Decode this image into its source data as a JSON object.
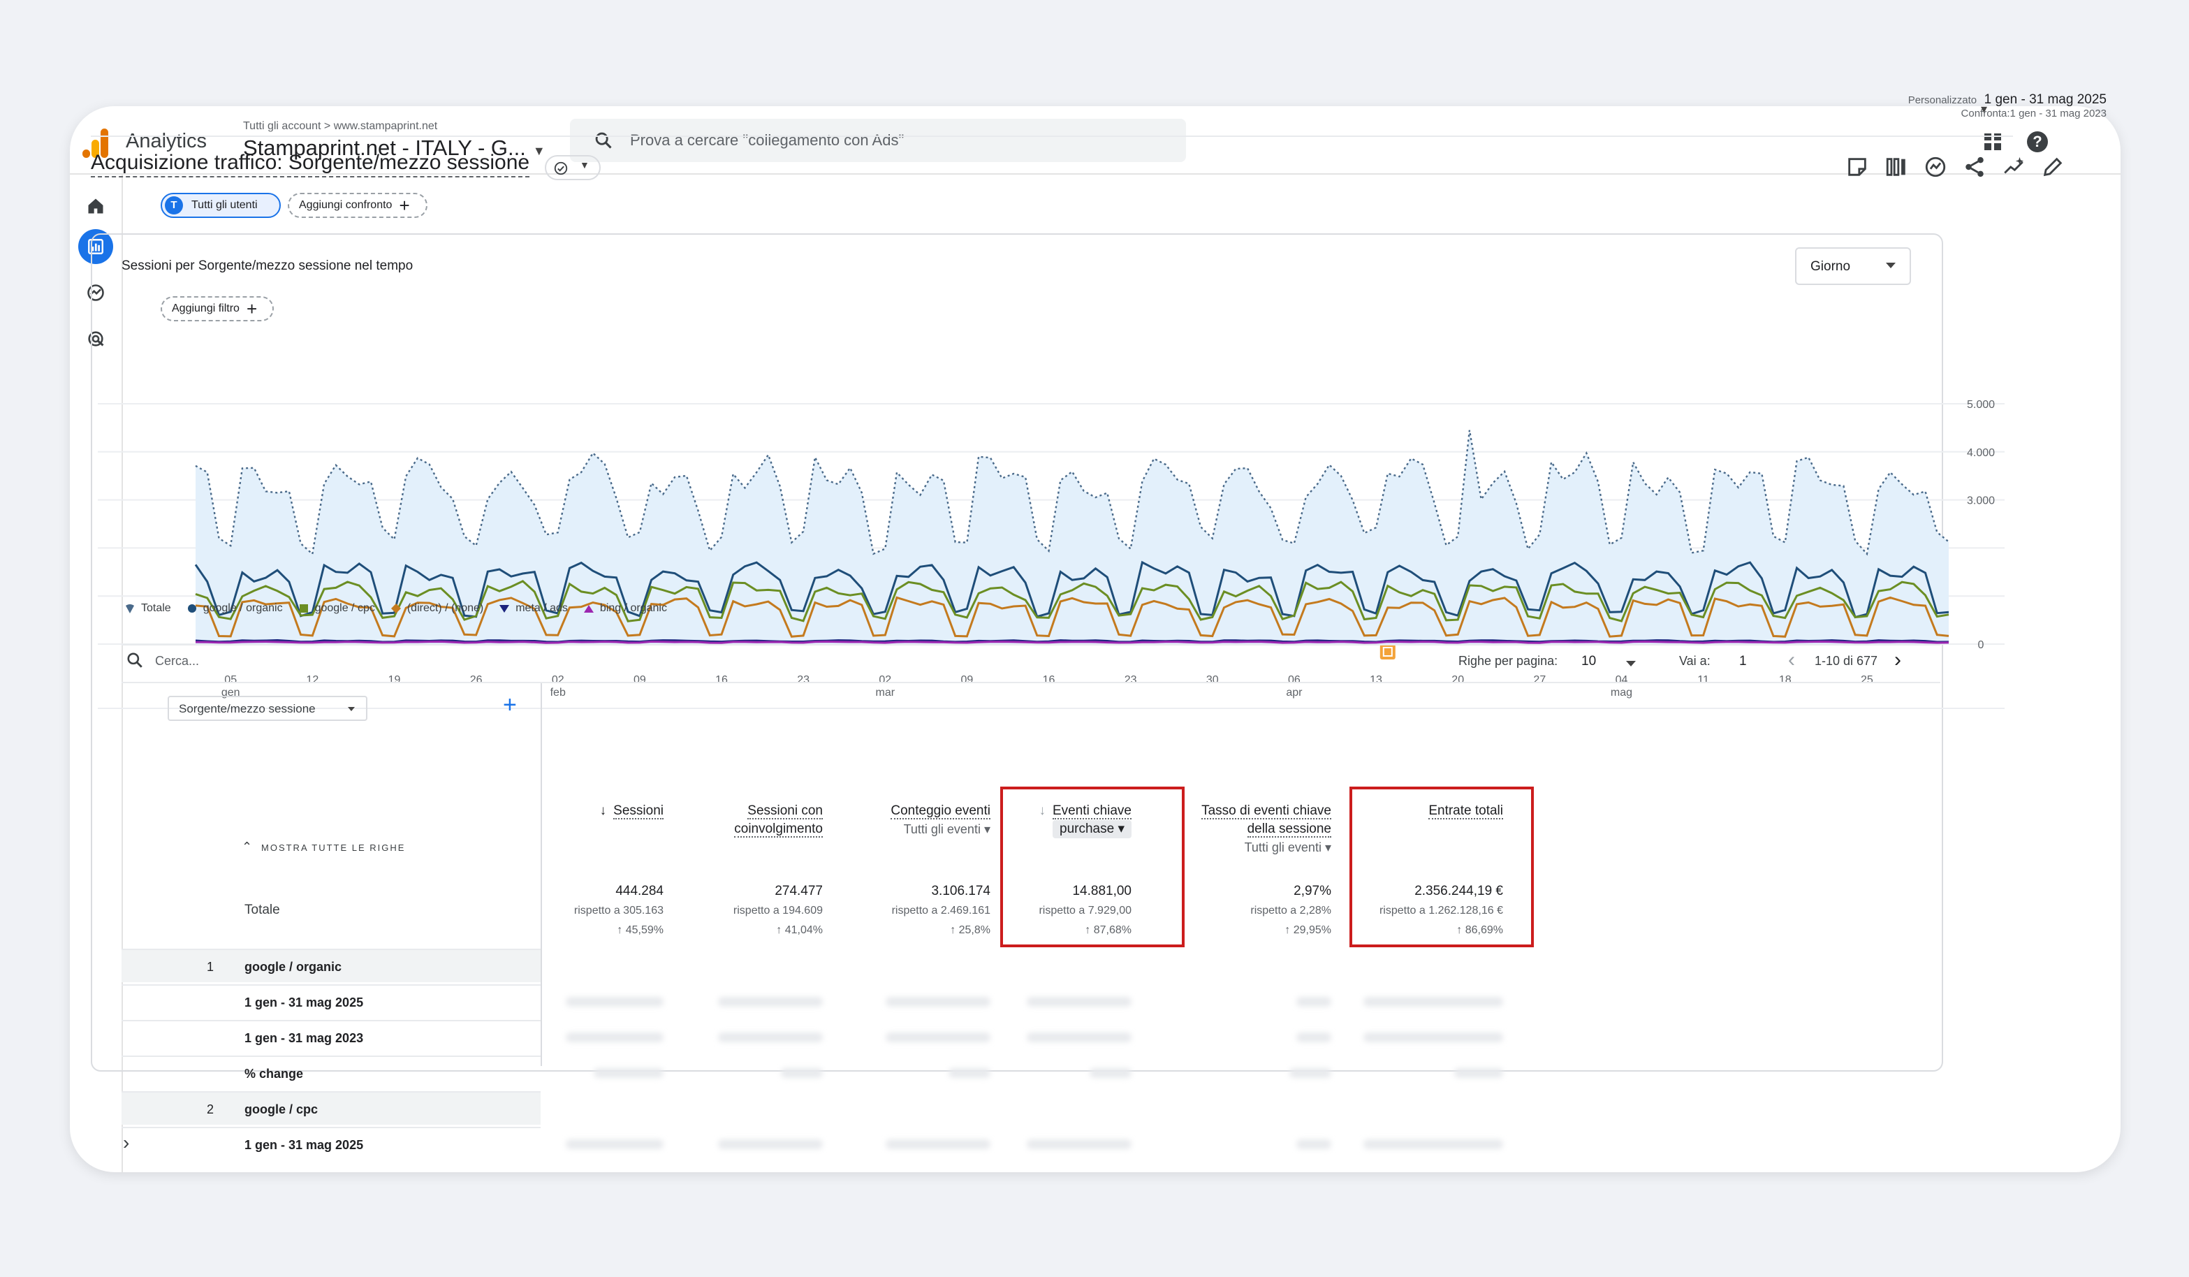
{
  "app": {
    "name": "Analytics"
  },
  "header": {
    "breadcrumb": "Tutti gli account  >  www.stampaprint.net",
    "property": "Stampaprint.net - ITALY - G...",
    "search_placeholder": "Prova a cercare \"collegamento con Ads\""
  },
  "chips": {
    "segment_letter": "T",
    "segment": "Tutti gli utenti",
    "compare": "Aggiungi confronto"
  },
  "date": {
    "label": "Personalizzato",
    "range": "1 gen - 31 mag 2025",
    "compare": "Confronta:1 gen - 31 mag 2023"
  },
  "report": {
    "title": "Acquisizione traffico: Sorgente/mezzo sessione",
    "filter": "Aggiungi filtro"
  },
  "chart": {
    "title": "Sessioni per Sorgente/mezzo sessione nel tempo",
    "granularity": "Giorno"
  },
  "chart_data": {
    "type": "line",
    "x_ticks": [
      {
        "day": "05",
        "month": "gen"
      },
      {
        "day": "12",
        "month": ""
      },
      {
        "day": "19",
        "month": ""
      },
      {
        "day": "26",
        "month": ""
      },
      {
        "day": "02",
        "month": "feb"
      },
      {
        "day": "09",
        "month": ""
      },
      {
        "day": "16",
        "month": ""
      },
      {
        "day": "23",
        "month": ""
      },
      {
        "day": "02",
        "month": "mar"
      },
      {
        "day": "09",
        "month": ""
      },
      {
        "day": "16",
        "month": ""
      },
      {
        "day": "23",
        "month": ""
      },
      {
        "day": "30",
        "month": ""
      },
      {
        "day": "06",
        "month": "apr"
      },
      {
        "day": "13",
        "month": ""
      },
      {
        "day": "20",
        "month": ""
      },
      {
        "day": "27",
        "month": ""
      },
      {
        "day": "04",
        "month": "mag"
      },
      {
        "day": "11",
        "month": ""
      },
      {
        "day": "18",
        "month": ""
      },
      {
        "day": "25",
        "month": ""
      }
    ],
    "y_ticks": [
      "5.000",
      "4.000",
      "3.000",
      "0"
    ],
    "ylim": [
      0,
      5000
    ],
    "days": 151,
    "series": [
      {
        "name": "Totale",
        "color": "#4a6a8a",
        "marker": "pin",
        "weekday": 3500,
        "weekend": 2150,
        "peak_day": 109,
        "peak": 4450
      },
      {
        "name": "google / organic",
        "color": "#1f4e79",
        "marker": "circle",
        "weekday": 1500,
        "weekend": 650
      },
      {
        "name": "google / cpc",
        "color": "#6b8e23",
        "marker": "square",
        "weekday": 1150,
        "weekend": 550
      },
      {
        "name": "(direct) / (none)",
        "color": "#c47a1e",
        "marker": "diamond",
        "weekday": 850,
        "weekend": 180
      },
      {
        "name": "meta / ads",
        "color": "#1a237e",
        "marker": "tri-down",
        "weekday": 70,
        "weekend": 50
      },
      {
        "name": "bing / organic",
        "color": "#9c27b0",
        "marker": "tri-up",
        "weekday": 45,
        "weekend": 30
      }
    ],
    "annotation_day": 102
  },
  "table": {
    "search_placeholder": "Cerca...",
    "rows_per_page_label": "Righe per pagina:",
    "rows_per_page": "10",
    "goto_label": "Vai a:",
    "goto_value": "1",
    "pagination": "1-10 di 677",
    "dimension": "Sorgente/mezzo sessione",
    "show_all_rows": "MOSTRA TUTTE LE RIGHE",
    "total_label": "Totale",
    "metrics": [
      {
        "line1": "Sessioni",
        "line2": "",
        "sub": "",
        "sorted": true,
        "total": "444.284",
        "compare": "rispetto a 305.163",
        "change": "↑ 45,59%"
      },
      {
        "line1": "Sessioni con",
        "line2": "coinvolgimento",
        "sub": "",
        "sorted": false,
        "total": "274.477",
        "compare": "rispetto a 194.609",
        "change": "↑ 41,04%"
      },
      {
        "line1": "Conteggio eventi",
        "line2": "",
        "sub": "Tutti gli eventi",
        "sorted": false,
        "total": "3.106.174",
        "compare": "rispetto a 2.469.161",
        "change": "↑ 25,8%"
      },
      {
        "line1": "Eventi chiave",
        "line2": "",
        "sub": "purchase",
        "sorted": false,
        "total": "14.881,00",
        "compare": "rispetto a 7.929,00",
        "change": "↑ 87,68%"
      },
      {
        "line1": "Tasso di eventi chiave",
        "line2": "della sessione",
        "sub": "Tutti gli eventi",
        "sorted": false,
        "total": "2,97%",
        "compare": "rispetto a 2,28%",
        "change": "↑ 29,95%"
      },
      {
        "line1": "Entrate totali",
        "line2": "",
        "sub": "",
        "sorted": false,
        "total": "2.356.244,19 €",
        "compare": "rispetto a 1.262.128,16 €",
        "change": "↑ 86,69%"
      }
    ],
    "rows": [
      {
        "index": "1",
        "label": "google / organic"
      },
      {
        "index": "",
        "label": "1 gen - 31 mag 2025"
      },
      {
        "index": "",
        "label": "1 gen - 31 mag 2023"
      },
      {
        "index": "",
        "label": "% change"
      },
      {
        "index": "2",
        "label": "google / cpc"
      },
      {
        "index": "",
        "label": "1 gen - 31 mag 2025"
      }
    ]
  }
}
